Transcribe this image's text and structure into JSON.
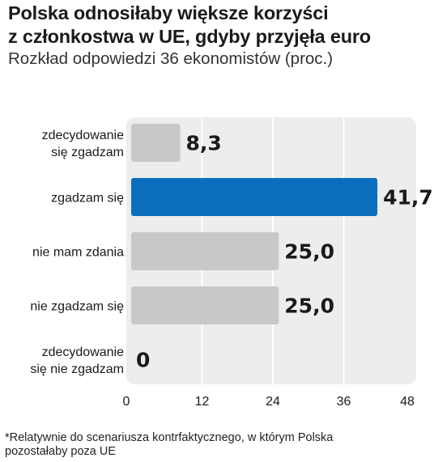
{
  "header": {
    "title_line1": "Polska odnosiłaby większe korzyści",
    "title_line2": "z członkostwa w UE, gdyby przyjęła euro",
    "subtitle": "Rozkład odpowiedzi 36 ekonomistów (proc.)"
  },
  "footnote": {
    "line1": "*Relatywnie do scenariusza kontrfaktycznego, w którym Polska",
    "line2": "pozostałaby poza UE"
  },
  "colors": {
    "bar_default": "#c8c8c8",
    "bar_highlight": "#0a6ebd",
    "plot_background": "#ededed"
  },
  "chart_data": {
    "type": "bar",
    "orientation": "horizontal",
    "categories": [
      [
        "zdecydowanie",
        "się zgadzam"
      ],
      [
        "zgadzam się"
      ],
      [
        "nie mam zdania"
      ],
      [
        "nie zgadzam się"
      ],
      [
        "zdecydowanie",
        "się nie zgadzam"
      ]
    ],
    "values": [
      8.3,
      41.7,
      25.0,
      25.0,
      0
    ],
    "value_labels": [
      "8,3",
      "41,7",
      "25,0",
      "25,0",
      "0"
    ],
    "highlight_index": 1,
    "xlim": [
      0,
      48
    ],
    "xticks": [
      0,
      12,
      24,
      36,
      48
    ],
    "xtick_labels": [
      "0",
      "12",
      "24",
      "36",
      "48"
    ],
    "grid": true
  }
}
